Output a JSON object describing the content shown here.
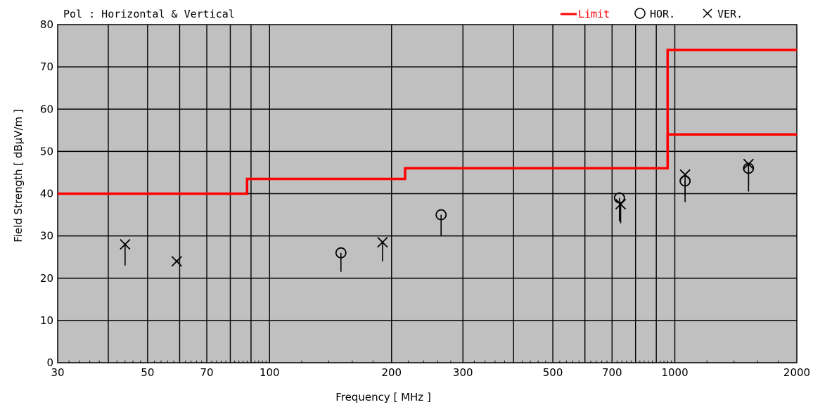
{
  "chart_data": {
    "type": "scatter",
    "title": "Pol : Horizontal & Vertical",
    "xlabel": "Frequency [ MHz ]",
    "ylabel": "Field Strength [ dBμV/m ]",
    "x_scale": "log",
    "xlim": [
      30,
      2000
    ],
    "ylim": [
      0,
      80
    ],
    "grid": true,
    "legend_position": "top-right",
    "colors": {
      "limit": "#ff0000",
      "plot_bg": "#c0c0c0",
      "grid": "#000000",
      "markers": "#000000"
    },
    "x_ticks": [
      {
        "value": 30,
        "label": "30"
      },
      {
        "value": 50,
        "label": "50"
      },
      {
        "value": 70,
        "label": "70"
      },
      {
        "value": 100,
        "label": "100"
      },
      {
        "value": 200,
        "label": "200"
      },
      {
        "value": 300,
        "label": "300"
      },
      {
        "value": 500,
        "label": "500"
      },
      {
        "value": 700,
        "label": "700"
      },
      {
        "value": 1000,
        "label": "1000"
      },
      {
        "value": 2000,
        "label": "2000"
      }
    ],
    "x_grid_values": [
      40,
      50,
      60,
      70,
      80,
      90,
      100,
      200,
      300,
      400,
      500,
      600,
      700,
      800,
      900,
      1000
    ],
    "y_ticks": [
      0,
      10,
      20,
      30,
      40,
      50,
      60,
      70,
      80
    ],
    "legend": {
      "limit_label": "Limit",
      "hor_label": "HOR.",
      "ver_label": "VER."
    },
    "series": [
      {
        "name": "Limit",
        "kind": "step-line",
        "points": [
          [
            30,
            40
          ],
          [
            88,
            40
          ],
          [
            88,
            43.5
          ],
          [
            216,
            43.5
          ],
          [
            216,
            46
          ],
          [
            960,
            46
          ],
          [
            960,
            54
          ],
          [
            2000,
            54
          ]
        ]
      },
      {
        "name": "Limit",
        "kind": "step-line",
        "points": [
          [
            960,
            46
          ],
          [
            960,
            74
          ],
          [
            2000,
            74
          ]
        ]
      },
      {
        "name": "HOR.",
        "kind": "marker",
        "marker": "circle",
        "points": [
          {
            "x": 150,
            "peak": 26,
            "avg": 21.5
          },
          {
            "x": 265,
            "peak": 35,
            "avg": 30
          },
          {
            "x": 730,
            "peak": 39,
            "avg": 33.5
          },
          {
            "x": 1060,
            "peak": 43,
            "avg": 38
          },
          {
            "x": 1520,
            "peak": 46,
            "avg": 40.5
          }
        ]
      },
      {
        "name": "VER.",
        "kind": "marker",
        "marker": "cross",
        "points": [
          {
            "x": 44,
            "peak": 28,
            "avg": 23
          },
          {
            "x": 59,
            "peak": 24,
            "avg": 24
          },
          {
            "x": 190,
            "peak": 28.5,
            "avg": 24
          },
          {
            "x": 735,
            "peak": 37.5,
            "avg": 33
          },
          {
            "x": 1060,
            "peak": 44.5,
            "avg": 39.5
          },
          {
            "x": 1520,
            "peak": 47,
            "avg": 42
          }
        ]
      }
    ]
  }
}
